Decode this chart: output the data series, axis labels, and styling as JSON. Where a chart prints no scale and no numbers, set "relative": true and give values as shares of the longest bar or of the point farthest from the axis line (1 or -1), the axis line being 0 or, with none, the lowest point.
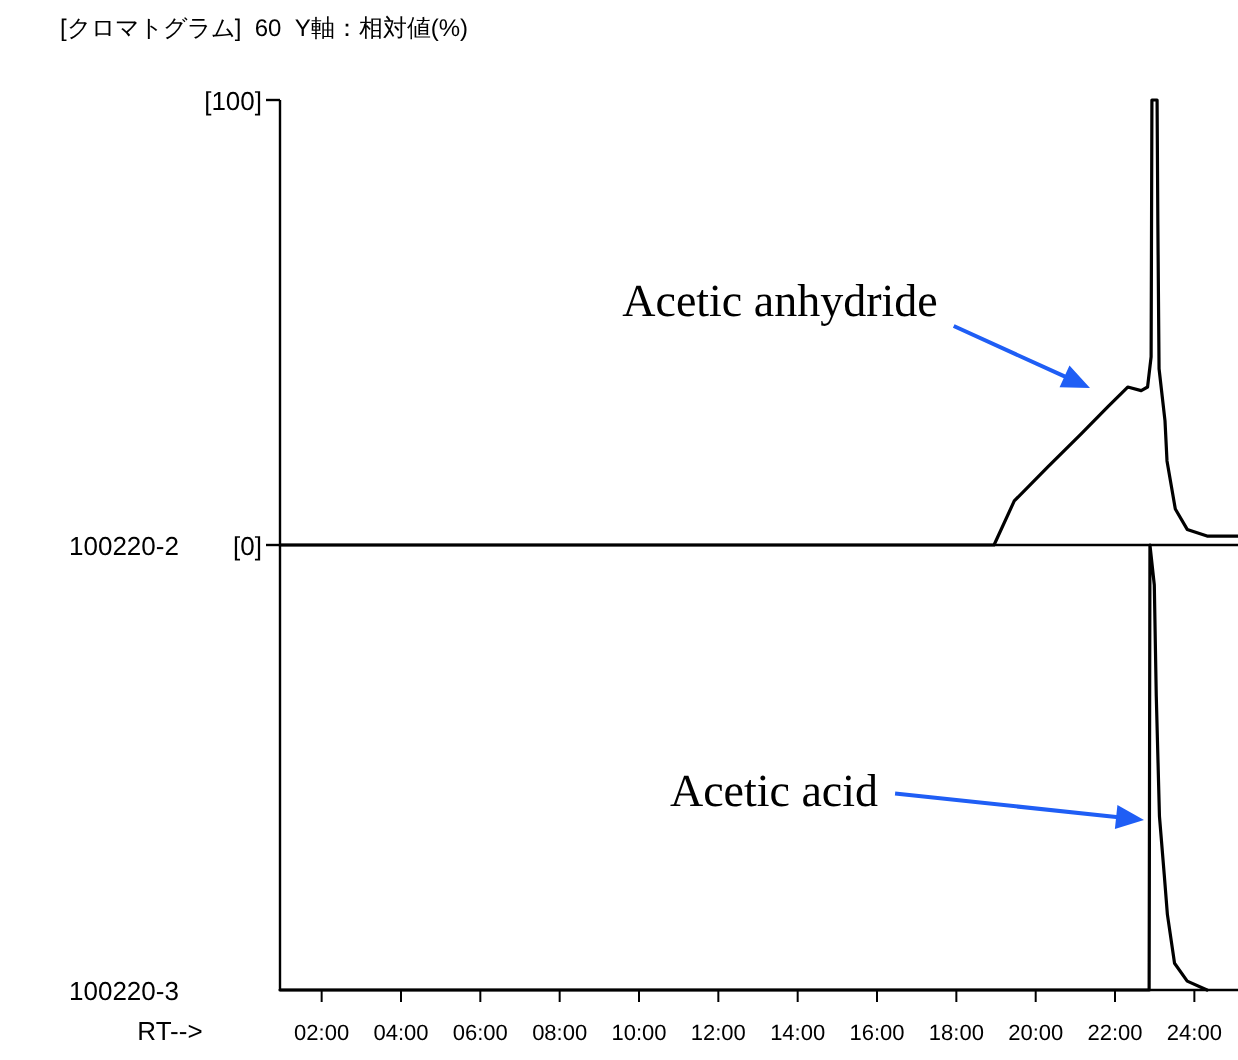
{
  "chart_data": [
    {
      "type": "line",
      "title": "[クロマトグラム]  60  Y軸：相対値(%)",
      "ylabel": "100220-2",
      "x": [
        0.95,
        18.95,
        19.46,
        20.3,
        21.14,
        21.81,
        22.32,
        22.66,
        22.82,
        22.91,
        22.93,
        23.06,
        23.08,
        23.11,
        23.26,
        23.31,
        23.52,
        23.82,
        24.32,
        25.1
      ],
      "series": [
        {
          "color": "#000000",
          "values": [
            0,
            0,
            9.9,
            17.5,
            24.9,
            31.0,
            35.5,
            34.7,
            35.5,
            42.3,
            100,
            100,
            72,
            39.6,
            27.9,
            18.9,
            8.1,
            3.5,
            2,
            2
          ]
        }
      ],
      "xlim": [
        0.95,
        25.1
      ],
      "ylim": [
        0,
        100
      ],
      "yticks": [
        {
          "value": 0,
          "label": "[0]"
        },
        {
          "value": 100,
          "label": "[100]"
        }
      ],
      "tick_labels": "y",
      "annotations": [
        "Acetic anhydride"
      ]
    },
    {
      "type": "line",
      "ylabel": "100220-3",
      "xlabel": "RT-->",
      "relative": true,
      "x": [
        0.95,
        22.86,
        22.88,
        22.99,
        23.04,
        23.12,
        23.24,
        23.32,
        23.5,
        23.82,
        24.32
      ],
      "series": [
        {
          "color": "#000000",
          "values": [
            0,
            0,
            1,
            0.91,
            0.66,
            0.39,
            0.26,
            0.17,
            0.06,
            0.02,
            0
          ]
        }
      ],
      "xlim": [
        0.95,
        25.1
      ],
      "xticks": [
        {
          "value": 2,
          "label": "02:00"
        },
        {
          "value": 4,
          "label": "04:00"
        },
        {
          "value": 6,
          "label": "06:00"
        },
        {
          "value": 8,
          "label": "08:00"
        },
        {
          "value": 10,
          "label": "10:00"
        },
        {
          "value": 12,
          "label": "12:00"
        },
        {
          "value": 14,
          "label": "14:00"
        },
        {
          "value": 16,
          "label": "16:00"
        },
        {
          "value": 18,
          "label": "18:00"
        },
        {
          "value": 20,
          "label": "20:00"
        },
        {
          "value": 22,
          "label": "22:00"
        },
        {
          "value": 24,
          "label": "24:00"
        }
      ],
      "tick_labels": "x",
      "annotations": [
        "Acetic acid"
      ]
    }
  ]
}
